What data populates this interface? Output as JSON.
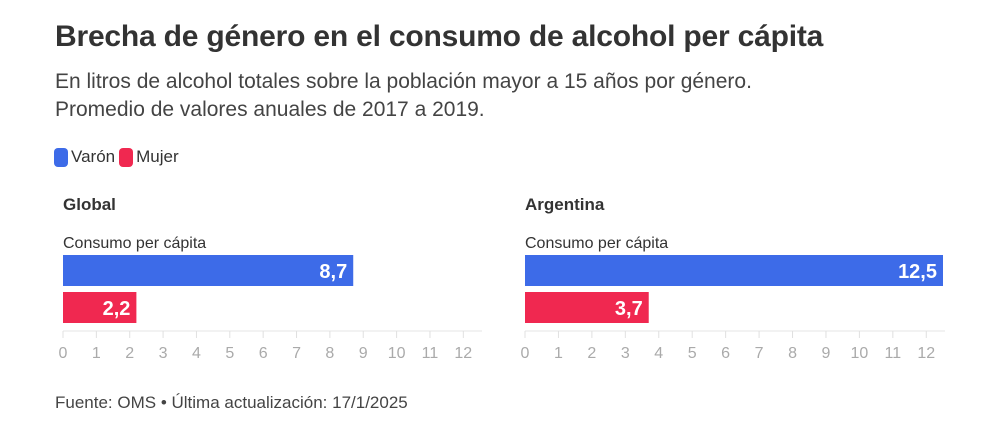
{
  "title": "Brecha de género en el consumo de alcohol per cápita",
  "subtitle_lines": [
    "En litros de alcohol totales sobre la población mayor a 15 años por género.",
    "Promedio de valores anuales de 2017 a 2019."
  ],
  "legend": [
    {
      "label": "Varón",
      "color": "#3d6be8"
    },
    {
      "label": "Mujer",
      "color": "#f02850"
    }
  ],
  "source": "Fuente: OMS • Última actualización: 17/1/2025",
  "chart_data": [
    {
      "type": "bar",
      "orientation": "horizontal",
      "title": "Global",
      "row_label": "Consumo per cápita",
      "series": [
        {
          "name": "Varón",
          "value": 8.7,
          "label": "8,7",
          "color": "#3d6be8"
        },
        {
          "name": "Mujer",
          "value": 2.2,
          "label": "2,2",
          "color": "#f02850"
        }
      ],
      "xlim": [
        0,
        12.5
      ],
      "ticks": [
        0,
        1,
        2,
        3,
        4,
        5,
        6,
        7,
        8,
        9,
        10,
        11,
        12
      ],
      "xlabel": "",
      "ylabel": ""
    },
    {
      "type": "bar",
      "orientation": "horizontal",
      "title": "Argentina",
      "row_label": "Consumo per cápita",
      "series": [
        {
          "name": "Varón",
          "value": 12.5,
          "label": "12,5",
          "color": "#3d6be8"
        },
        {
          "name": "Mujer",
          "value": 3.7,
          "label": "3,7",
          "color": "#f02850"
        }
      ],
      "xlim": [
        0,
        12.5
      ],
      "ticks": [
        0,
        1,
        2,
        3,
        4,
        5,
        6,
        7,
        8,
        9,
        10,
        11,
        12
      ],
      "xlabel": "",
      "ylabel": ""
    }
  ]
}
